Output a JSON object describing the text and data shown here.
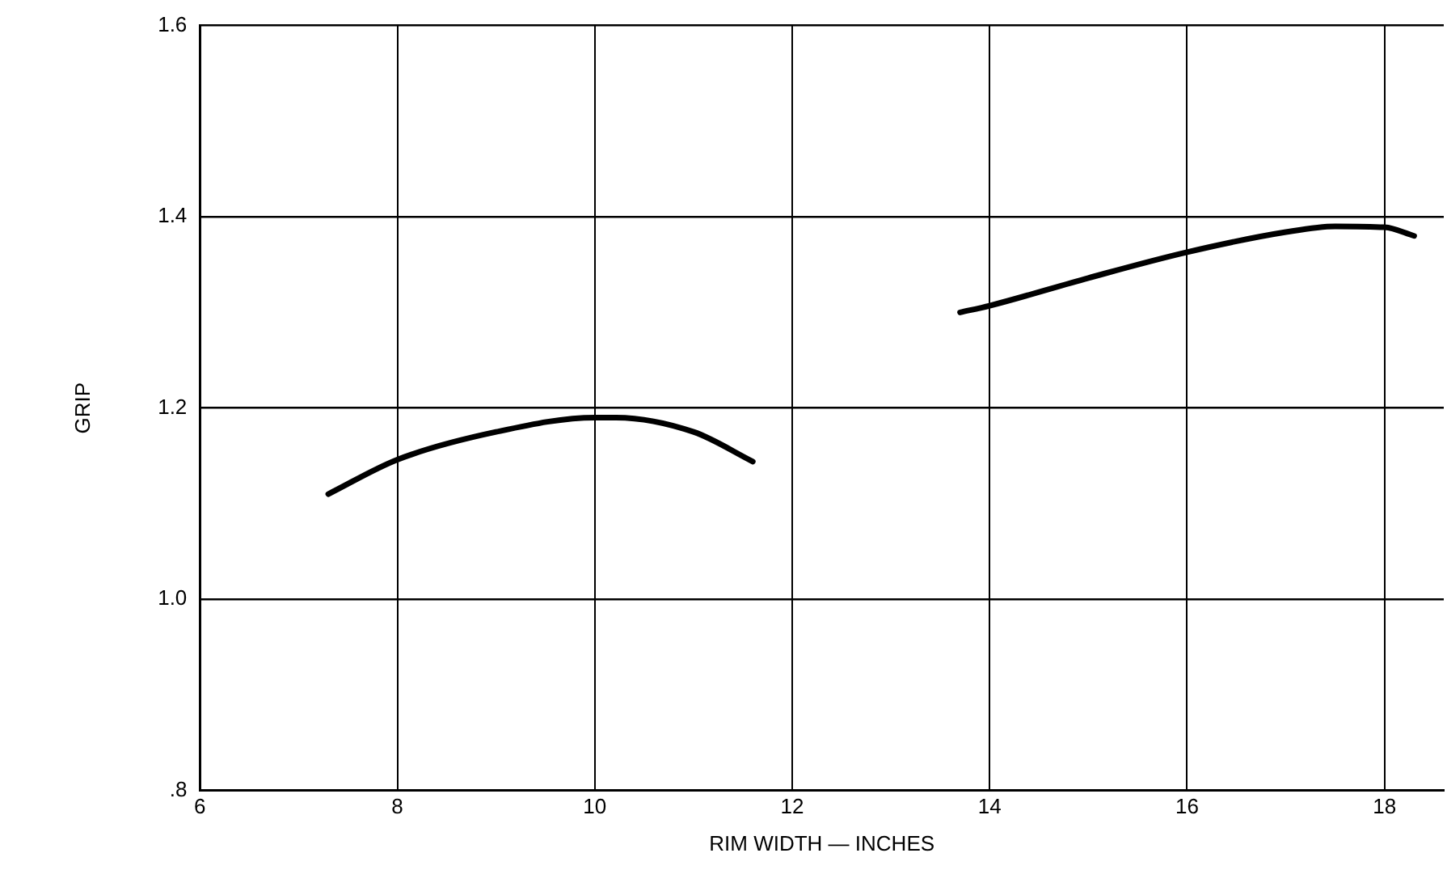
{
  "chart_data": {
    "type": "line",
    "xlabel": "RIM WIDTH — INCHES",
    "ylabel": "GRIP",
    "xlim": [
      6,
      18.6
    ],
    "xticks": [
      6,
      8,
      10,
      12,
      14,
      16,
      18
    ],
    "ylim": [
      0.8,
      1.6
    ],
    "yticks": [
      {
        "value": 0.8,
        "label": ".8"
      },
      {
        "value": 1.0,
        "label": "1.0"
      },
      {
        "value": 1.2,
        "label": "1.2"
      },
      {
        "value": 1.4,
        "label": "1.4"
      },
      {
        "value": 1.6,
        "label": "1.6"
      }
    ],
    "grid": true,
    "legend": false,
    "marker": "none",
    "line_style": "solid",
    "series": [
      {
        "color": "#000000",
        "x": [
          7.3,
          8,
          9,
          10,
          10.2,
          11,
          11.6
        ],
        "values": [
          1.11,
          1.146,
          1.175,
          1.19,
          1.19,
          1.175,
          1.144
        ]
      },
      {
        "color": "#000000",
        "x": [
          13.7,
          14,
          15,
          16,
          17,
          17.5,
          18,
          18.3
        ],
        "values": [
          1.3,
          1.307,
          1.336,
          1.363,
          1.384,
          1.39,
          1.389,
          1.38
        ]
      }
    ]
  }
}
